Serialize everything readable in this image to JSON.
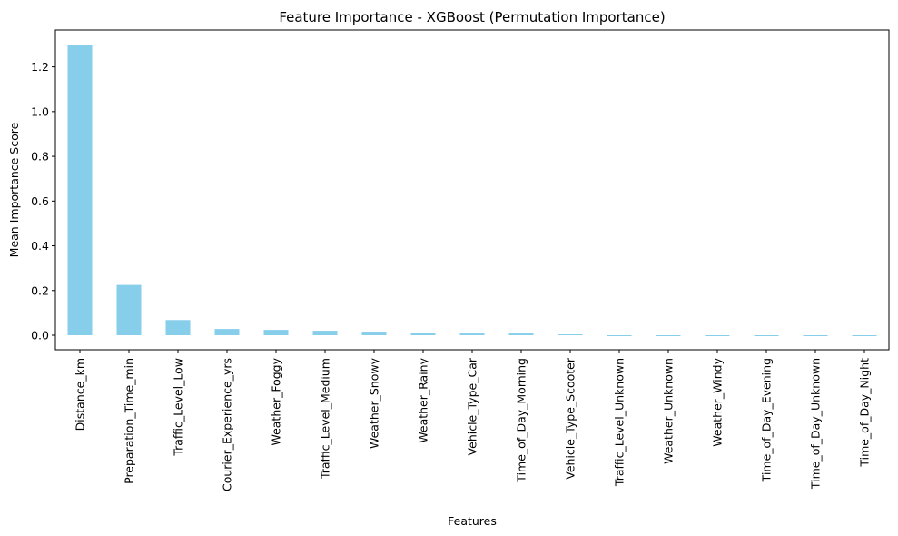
{
  "chart_data": {
    "type": "bar",
    "title": "Feature Importance - XGBoost (Permutation Importance)",
    "xlabel": "Features",
    "ylabel": "Mean Importance Score",
    "categories": [
      "Distance_km",
      "Preparation_Time_min",
      "Traffic_Level_Low",
      "Courier_Experience_yrs",
      "Weather_Foggy",
      "Traffic_Level_Medium",
      "Weather_Snowy",
      "Weather_Rainy",
      "Vehicle_Type_Car",
      "Time_of_Day_Morning",
      "Vehicle_Type_Scooter",
      "Traffic_Level_Unknown",
      "Weather_Unknown",
      "Weather_Windy",
      "Time_of_Day_Evening",
      "Time_of_Day_Unknown",
      "Time_of_Day_Night"
    ],
    "values": [
      1.3,
      0.225,
      0.068,
      0.028,
      0.024,
      0.02,
      0.016,
      0.009,
      0.008,
      0.008,
      0.004,
      0.0,
      0.0,
      0.0,
      0.0,
      -0.002,
      -0.003
    ],
    "ylim": [
      -0.065,
      1.365
    ],
    "yticks": [
      "0.0",
      "0.2",
      "0.4",
      "0.6",
      "0.8",
      "1.0",
      "1.2"
    ],
    "ytick_values": [
      0.0,
      0.2,
      0.4,
      0.6,
      0.8,
      1.0,
      1.2
    ],
    "bar_color": "#87ceeb",
    "grid": false,
    "legend": "none"
  }
}
